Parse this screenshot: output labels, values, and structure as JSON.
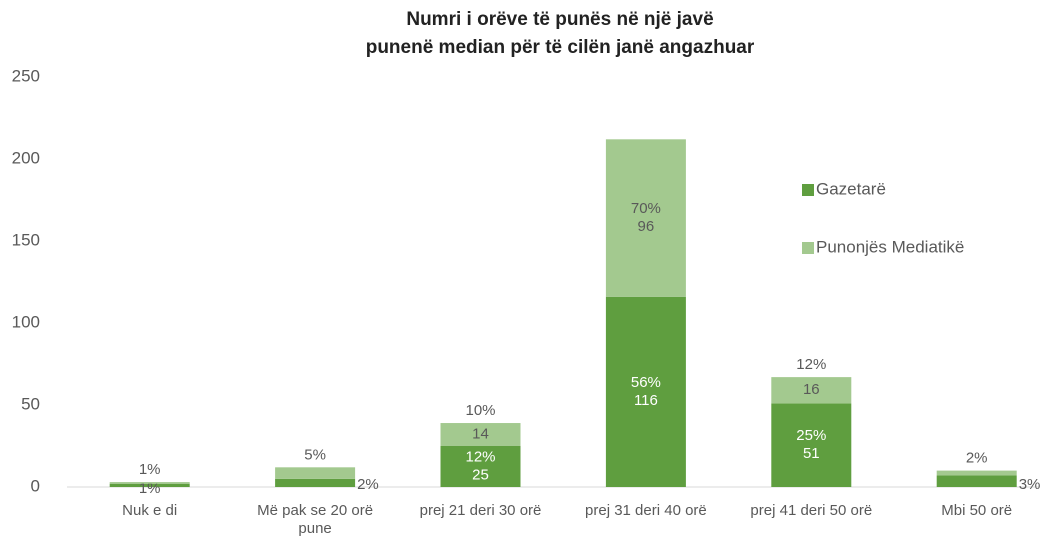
{
  "chart_data": {
    "type": "stacked-bar",
    "title": [
      "Numri i orëve të punës në një javë",
      "punenë median për të cilën janë angazhuar"
    ],
    "categories": [
      "Nuk e di",
      [
        "Më pak se 20 orë",
        "pune"
      ],
      "prej 21 deri 30 orë",
      "prej 31 deri 40 orë",
      "prej 41 deri 50 orë",
      "Mbi 50 orë"
    ],
    "series": [
      {
        "name": "Gazetarë",
        "color": "#5f9e3f",
        "values": [
          2,
          5,
          25,
          116,
          51,
          7
        ],
        "value_labels": [
          null,
          null,
          "25",
          "116",
          "51",
          null
        ],
        "percent_labels": [
          "1%",
          "2%",
          "12%",
          "56%",
          "25%",
          "3%"
        ]
      },
      {
        "name": "Punonjës Mediatikë",
        "color": "#a3c98f",
        "values": [
          1,
          7,
          14,
          96,
          16,
          3
        ],
        "value_labels": [
          null,
          null,
          "14",
          "96",
          "16",
          null
        ],
        "percent_labels": [
          "1%",
          "5%",
          "10%",
          "70%",
          "12%",
          "2%"
        ]
      }
    ],
    "ylim": [
      0,
      250
    ],
    "yticks": [
      0,
      50,
      100,
      150,
      200,
      250
    ],
    "grid": false,
    "legend": "right"
  }
}
